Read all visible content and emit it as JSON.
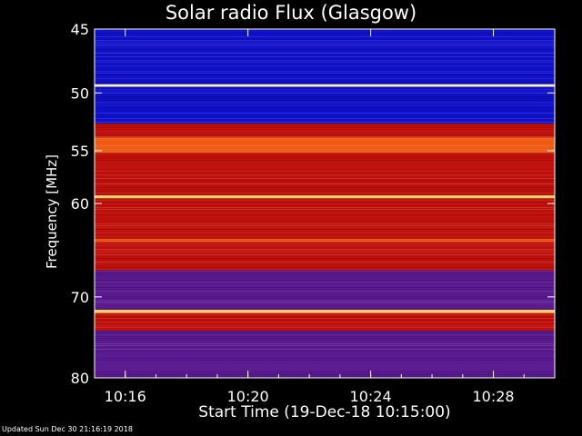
{
  "chart_data": {
    "type": "heatmap",
    "title": "Solar radio Flux (Glasgow)",
    "xlabel": "Start Time (19-Dec-18 10:15:00)",
    "ylabel": "Frequency [MHz]",
    "x_ticks": [
      "10:16",
      "10:20",
      "10:24",
      "10:28"
    ],
    "x_tick_minutes": [
      1,
      5,
      9,
      13
    ],
    "xlim_minutes": [
      0,
      15
    ],
    "y_ticks": [
      45,
      50,
      55,
      60,
      70,
      80
    ],
    "ylim": [
      45,
      80
    ],
    "frequency_bands": [
      {
        "from": 45.0,
        "to": 49.3,
        "level": "blue"
      },
      {
        "from": 49.3,
        "to": 49.5,
        "level": "white"
      },
      {
        "from": 49.5,
        "to": 52.6,
        "level": "blue"
      },
      {
        "from": 52.6,
        "to": 53.8,
        "level": "red"
      },
      {
        "from": 53.8,
        "to": 55.2,
        "level": "orange"
      },
      {
        "from": 55.2,
        "to": 59.2,
        "level": "red"
      },
      {
        "from": 59.2,
        "to": 59.5,
        "level": "yellow"
      },
      {
        "from": 59.5,
        "to": 63.6,
        "level": "red"
      },
      {
        "from": 63.6,
        "to": 63.9,
        "level": "orange"
      },
      {
        "from": 63.9,
        "to": 67.0,
        "level": "red"
      },
      {
        "from": 67.0,
        "to": 71.5,
        "level": "purple"
      },
      {
        "from": 71.5,
        "to": 71.9,
        "level": "yellow"
      },
      {
        "from": 71.9,
        "to": 74.0,
        "level": "red"
      },
      {
        "from": 74.0,
        "to": 80.0,
        "level": "purple"
      }
    ],
    "colors": {
      "blue": "#1010c8",
      "white": "#fff2c0",
      "red": "#c0100c",
      "orange": "#f05a10",
      "yellow": "#ffd060",
      "purple": "#5a1a90",
      "axis": "#ffffff",
      "background": "#000000"
    }
  },
  "footer": "Updated Sun Dec 30 21:16:19 2018"
}
